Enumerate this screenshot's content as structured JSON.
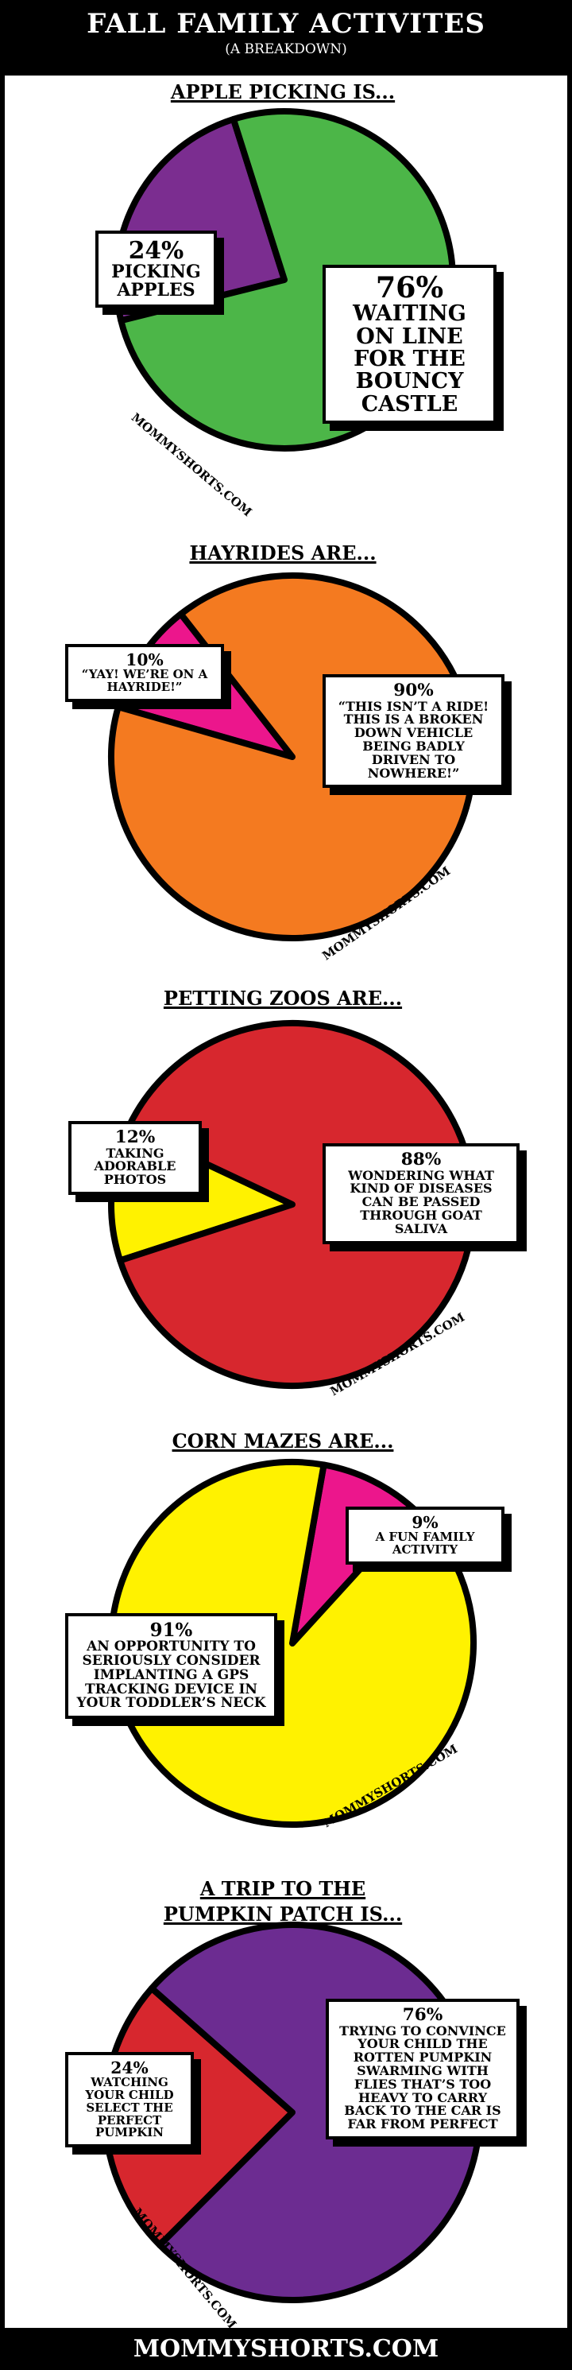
{
  "header": {
    "title": "FALL FAMILY ACTIVITES",
    "subtitle": "(A BREAKDOWN)"
  },
  "footer": "MOMMYSHORTS.COM",
  "chart_data": [
    {
      "type": "pie",
      "title": "APPLE PICKING IS...",
      "watermark": "MOMMYSHORTS.COM",
      "categories": [
        "PICKING APPLES",
        "WAITING ON LINE FOR THE BOUNCY CASTLE"
      ],
      "values": [
        24,
        76
      ],
      "value_labels": [
        "24%",
        "76%"
      ],
      "colors": [
        "#7b2d90",
        "#4cb648"
      ]
    },
    {
      "type": "pie",
      "title": "HAYRIDES ARE...",
      "watermark": "MOMMYSHORTS.COM",
      "categories": [
        "“YAY! WE’RE ON A HAYRIDE!”",
        "“THIS ISN’T A RIDE! THIS IS A BROKEN DOWN VEHICLE BEING BADLY DRIVEN TO NOWHERE!”"
      ],
      "values": [
        10,
        90
      ],
      "value_labels": [
        "10%",
        "90%"
      ],
      "colors": [
        "#ec168c",
        "#f47a20"
      ]
    },
    {
      "type": "pie",
      "title": "PETTING ZOOS ARE...",
      "watermark": "MOMMYSHORTS.COM",
      "categories": [
        "TAKING ADORABLE PHOTOS",
        "WONDERING WHAT KIND OF DISEASES CAN BE PASSED THROUGH GOAT SALIVA"
      ],
      "values": [
        12,
        88
      ],
      "value_labels": [
        "12%",
        "88%"
      ],
      "colors": [
        "#fff200",
        "#d7272e"
      ]
    },
    {
      "type": "pie",
      "title": "CORN MAZES ARE...",
      "watermark": "MOMMYSHORTS.COM",
      "categories": [
        "A FUN FAMILY ACTIVITY",
        "AN OPPORTUNITY TO SERIOUSLY CONSIDER IMPLANTING A GPS TRACKING DEVICE IN YOUR TODDLER’S NECK"
      ],
      "values": [
        9,
        91
      ],
      "value_labels": [
        "9%",
        "91%"
      ],
      "colors": [
        "#ec168c",
        "#fff200"
      ]
    },
    {
      "type": "pie",
      "title": "A TRIP TO THE PUMPKIN PATCH IS...",
      "watermark": "MOMMYSHORTS.COM",
      "categories": [
        "WATCHING YOUR CHILD SELECT THE PERFECT PUMPKIN",
        "TRYING TO CONVINCE YOUR CHILD THE ROTTEN PUMPKIN SWARMING WITH FLIES THAT’S TOO HEAVY TO CARRY BACK TO THE CAR IS FAR FROM PERFECT"
      ],
      "values": [
        24,
        76
      ],
      "value_labels": [
        "24%",
        "76%"
      ],
      "colors": [
        "#d7272e",
        "#6c2c91"
      ]
    }
  ]
}
